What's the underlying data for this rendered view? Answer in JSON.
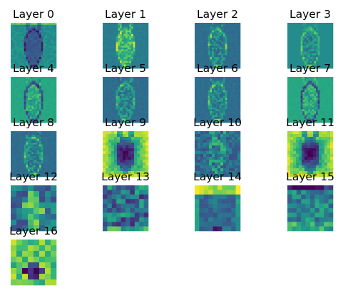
{
  "chart_data": {
    "type": "heatmap",
    "colormap": "viridis",
    "grid_columns": 4,
    "grid_rows": 5,
    "panels": [
      {
        "title": "Layer 0",
        "pattern": "edge-dark"
      },
      {
        "title": "Layer 1",
        "pattern": "face-bright"
      },
      {
        "title": "Layer 2",
        "pattern": "face-mid"
      },
      {
        "title": "Layer 3",
        "pattern": "face-light"
      },
      {
        "title": "Layer 4",
        "pattern": "edge-green"
      },
      {
        "title": "Layer 5",
        "pattern": "face-mid"
      },
      {
        "title": "Layer 6",
        "pattern": "face-mid"
      },
      {
        "title": "Layer 7",
        "pattern": "edge-green"
      },
      {
        "title": "Layer 8",
        "pattern": "face-mid"
      },
      {
        "title": "Layer 9",
        "pattern": "blob-dark-yellow-border"
      },
      {
        "title": "Layer 10",
        "pattern": "blob-mixed"
      },
      {
        "title": "Layer 11",
        "pattern": "blob-dark-yellow-border"
      },
      {
        "title": "Layer 12",
        "pattern": "coarse-green"
      },
      {
        "title": "Layer 13",
        "pattern": "coarse-grid"
      },
      {
        "title": "Layer 14",
        "pattern": "coarse-frame"
      },
      {
        "title": "Layer 15",
        "pattern": "coarse-dark-top"
      },
      {
        "title": "Layer 16",
        "pattern": "coarse-dark-center"
      }
    ]
  }
}
